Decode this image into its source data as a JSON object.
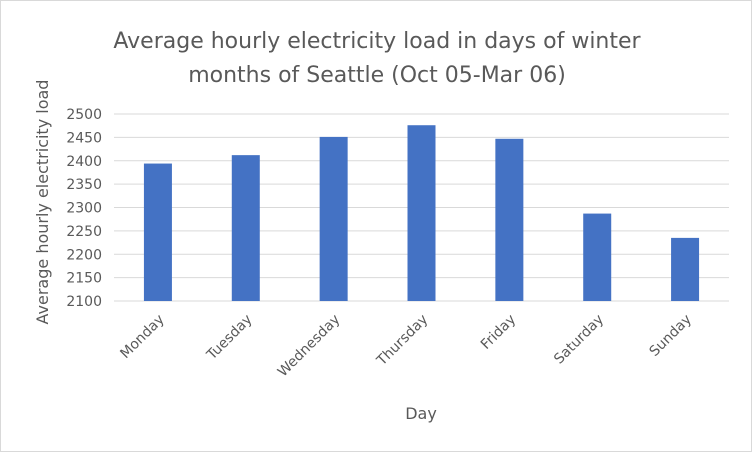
{
  "chart_data": {
    "type": "bar",
    "title_lines": [
      "Average hourly electricity load in days of winter",
      "months of Seattle (Oct 05-Mar 06)"
    ],
    "xlabel": "Day",
    "ylabel": "Average hourly electricity load",
    "categories": [
      "Monday",
      "Tuesday",
      "Wednesday",
      "Thursday",
      "Friday",
      "Saturday",
      "Sunday"
    ],
    "values": [
      2394,
      2412,
      2451,
      2476,
      2447,
      2287,
      2235
    ],
    "ylim": [
      2100,
      2500
    ],
    "yticks": [
      2100,
      2150,
      2200,
      2250,
      2300,
      2350,
      2400,
      2450,
      2500
    ],
    "grid": true,
    "legend": "none",
    "bar_color": "#4472c4"
  }
}
